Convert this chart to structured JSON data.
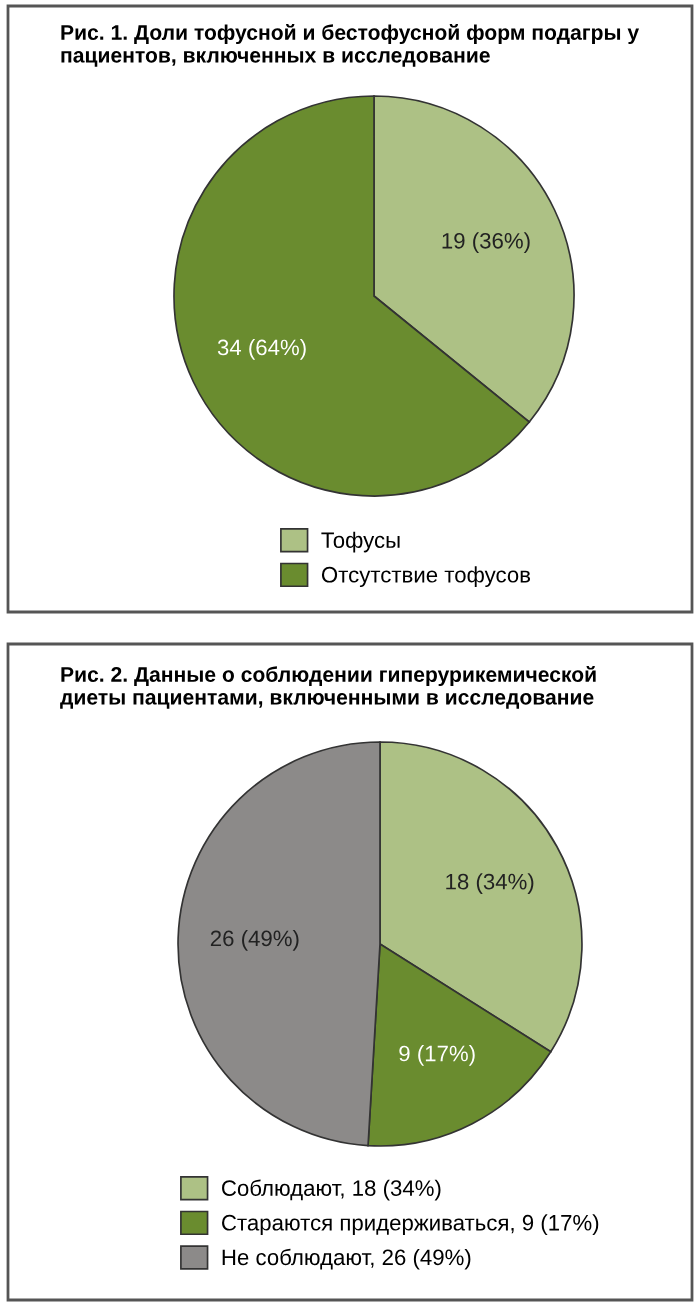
{
  "chart_data": [
    {
      "type": "pie",
      "title": "Рис. 1. Доли тофусной и бестофусной форм подагры у пациентов, включенных в исследование",
      "categories": [
        "Тофусы",
        "Отсутствие тофусов"
      ],
      "values": [
        19,
        34
      ],
      "colors": [
        "#adc185",
        "#6a8c2f"
      ],
      "value_labels": [
        "19 (36%)",
        "34 (64%)"
      ],
      "legend": "bottom"
    },
    {
      "type": "pie",
      "title": "Рис. 2. Данные о соблюдении гиперурикемической диеты пациентами, включенными в исследование",
      "categories": [
        "Соблюдают, 18 (34%)",
        "Стараются придерживаться, 9 (17%)",
        "Не соблюдают, 26 (49%)"
      ],
      "values": [
        18,
        9,
        26
      ],
      "colors": [
        "#adc185",
        "#6a8c2f",
        "#8c8a89"
      ],
      "value_labels": [
        "18 (34%)",
        "9 (17%)",
        "26 (49%)"
      ],
      "legend": "bottom"
    }
  ]
}
